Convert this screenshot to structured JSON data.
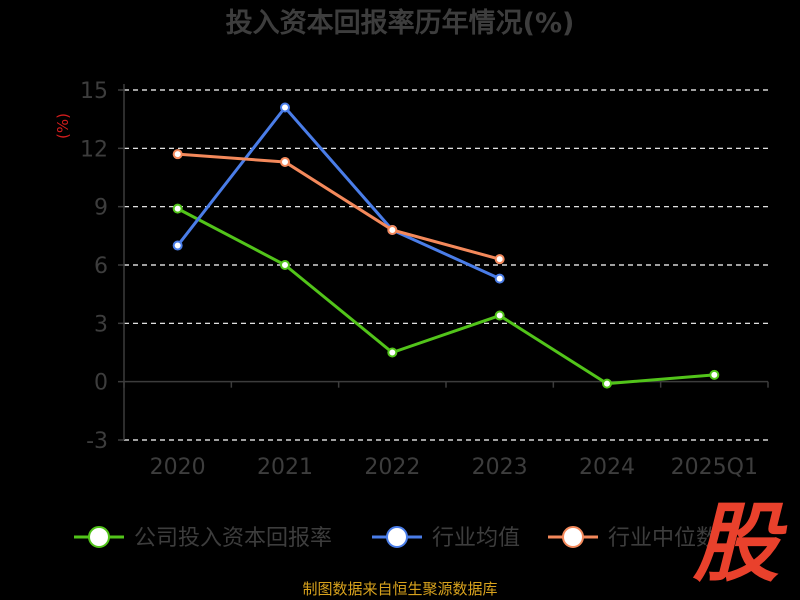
{
  "chart_data": {
    "type": "line",
    "title": "投入资本回报率历年情况(%)",
    "ylabel": "(%)",
    "categories": [
      "2020",
      "2021",
      "2022",
      "2023",
      "2024",
      "2025Q1"
    ],
    "ylim": [
      -3,
      15
    ],
    "yticks": [
      -3,
      0,
      3,
      6,
      9,
      12,
      15
    ],
    "grid": "horizontal dashed",
    "legend_position": "bottom",
    "series": [
      {
        "name": "公司投入资本回报率",
        "color": "#52c41a",
        "values": [
          8.9,
          6.0,
          1.5,
          3.4,
          -0.1,
          0.35
        ]
      },
      {
        "name": "行业均值",
        "color": "#4a7de8",
        "values": [
          7.0,
          14.1,
          7.8,
          5.3,
          null,
          null
        ]
      },
      {
        "name": "行业中位数",
        "color": "#f4895b",
        "values": [
          11.7,
          11.3,
          7.8,
          6.3,
          null,
          null
        ]
      }
    ]
  },
  "watermark_text": "股",
  "source_text": "制图数据来自恒生聚源数据库",
  "colors": {
    "background": "#000000",
    "axis": "#3c3c3c",
    "axis_text": "#3d3d3d",
    "title": "#3d3d3d",
    "grid": "#ffffff",
    "ylabel": "#d41d1d",
    "source": "#d8a21d",
    "logo": "#e9412c"
  }
}
